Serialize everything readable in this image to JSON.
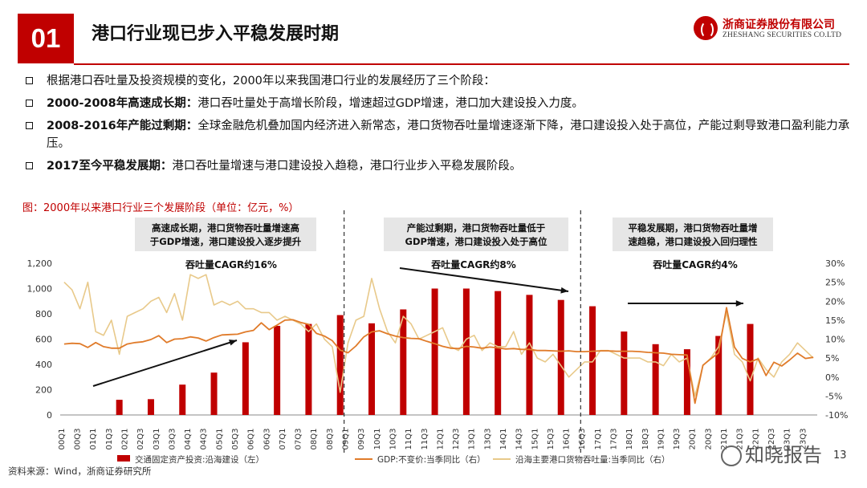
{
  "header": {
    "section_number": "01",
    "title": "港口行业现已步入平稳发展时期",
    "logo_cn": "浙商证券股份有限公司",
    "logo_en": "ZHESHANG SECURITIES CO.LTD",
    "accent_color": "#c00000"
  },
  "bullets": [
    {
      "bold": "",
      "text": "根据港口吞吐量及投资规模的变化，2000年以来我国港口行业的发展经历了三个阶段："
    },
    {
      "bold": "2000-2008年高速成长期：",
      "text": "港口吞吐量处于高增长阶段，增速超过GDP增速，港口加大建设投入力度。"
    },
    {
      "bold": "2008-2016年产能过剩期：",
      "text": "全球金融危机叠加国内经济进入新常态，港口货物吞吐量增速逐渐下降，港口建设投入处于高位，产能过剩导致港口盈利能力承压。"
    },
    {
      "bold": "2017至今平稳发展期：",
      "text": "港口吞吐量增速与港口建设投入趋稳，港口行业步入平稳发展阶段。"
    }
  ],
  "chart_caption": "图：2000年以来港口行业三个发展阶段（单位：亿元，%）",
  "chart_data": {
    "type": "bar+line",
    "categories": [
      "00Q1",
      "00Q2",
      "00Q3",
      "00Q4",
      "01Q1",
      "01Q2",
      "01Q3",
      "01Q4",
      "02Q1",
      "02Q2",
      "02Q3",
      "02Q4",
      "03Q1",
      "03Q2",
      "03Q3",
      "03Q4",
      "04Q1",
      "04Q2",
      "04Q3",
      "04Q4",
      "05Q1",
      "05Q2",
      "05Q3",
      "05Q4",
      "06Q1",
      "06Q2",
      "06Q3",
      "06Q4",
      "07Q1",
      "07Q2",
      "07Q3",
      "07Q4",
      "08Q1",
      "08Q2",
      "08Q3",
      "08Q4",
      "09Q1",
      "09Q2",
      "09Q3",
      "09Q4",
      "10Q1",
      "10Q2",
      "10Q3",
      "10Q4",
      "11Q1",
      "11Q2",
      "11Q3",
      "11Q4",
      "12Q1",
      "12Q2",
      "12Q3",
      "12Q4",
      "13Q1",
      "13Q2",
      "13Q3",
      "13Q4",
      "14Q1",
      "14Q2",
      "14Q3",
      "14Q4",
      "15Q1",
      "15Q2",
      "15Q3",
      "15Q4",
      "16Q1",
      "16Q2",
      "16Q3",
      "16Q4",
      "17Q1",
      "17Q2",
      "17Q3",
      "17Q4",
      "18Q1",
      "18Q2",
      "18Q3",
      "18Q4",
      "19Q1",
      "19Q2",
      "19Q3",
      "19Q4",
      "20Q1",
      "20Q2",
      "20Q3",
      "20Q4",
      "21Q1",
      "21Q2",
      "21Q3",
      "21Q4",
      "22Q1",
      "22Q2",
      "22Q3",
      "22Q4",
      "23Q1",
      "23Q2",
      "23Q3",
      "23Q4"
    ],
    "x_tick_labels": [
      "00Q1",
      "00Q3",
      "01Q1",
      "01Q3",
      "02Q1",
      "02Q3",
      "03Q1",
      "03Q3",
      "04Q1",
      "04Q3",
      "05Q1",
      "05Q3",
      "06Q1",
      "06Q3",
      "07Q1",
      "07Q3",
      "08Q1",
      "08Q3",
      "09Q1",
      "09Q3",
      "10Q1",
      "10Q3",
      "11Q1",
      "11Q3",
      "12Q1",
      "12Q3",
      "13Q1",
      "13Q3",
      "14Q1",
      "14Q3",
      "15Q1",
      "15Q3",
      "16Q1",
      "16Q3",
      "17Q1",
      "17Q3",
      "18Q1",
      "18Q3",
      "19Q1",
      "19Q3",
      "20Q1",
      "20Q3",
      "21Q1",
      "21Q3",
      "22Q1",
      "22Q3",
      "23Q1",
      "23Q3"
    ],
    "bars": {
      "name": "交通固定资产投资:沿海建设（左）",
      "color": "#c00000",
      "points": [
        {
          "x": "01Q4",
          "value": 120
        },
        {
          "x": "02Q4",
          "value": 125
        },
        {
          "x": "03Q4",
          "value": 240
        },
        {
          "x": "04Q4",
          "value": 335
        },
        {
          "x": "05Q4",
          "value": 575
        },
        {
          "x": "06Q4",
          "value": 705
        },
        {
          "x": "07Q4",
          "value": 720
        },
        {
          "x": "08Q4",
          "value": 790
        },
        {
          "x": "09Q4",
          "value": 725
        },
        {
          "x": "10Q4",
          "value": 835
        },
        {
          "x": "11Q4",
          "value": 1000
        },
        {
          "x": "12Q4",
          "value": 1000
        },
        {
          "x": "13Q4",
          "value": 980
        },
        {
          "x": "14Q4",
          "value": 950
        },
        {
          "x": "15Q4",
          "value": 910
        },
        {
          "x": "16Q4",
          "value": 860
        },
        {
          "x": "17Q4",
          "value": 660
        },
        {
          "x": "18Q4",
          "value": 560
        },
        {
          "x": "19Q4",
          "value": 520
        },
        {
          "x": "20Q4",
          "value": 625
        },
        {
          "x": "21Q4",
          "value": 720
        }
      ]
    },
    "gdp": {
      "name": "GDP:不变价:当季同比（右）",
      "color": "#e07b2a",
      "values": [
        8.7,
        8.9,
        8.8,
        7.8,
        9.1,
        8.0,
        7.6,
        7.6,
        8.7,
        9.1,
        9.3,
        9.9,
        10.9,
        9.1,
        10.0,
        10.1,
        10.6,
        10.3,
        9.5,
        10.4,
        11.1,
        11.2,
        11.3,
        11.9,
        12.3,
        14.3,
        12.5,
        13.7,
        15.0,
        15.1,
        14.4,
        13.9,
        11.5,
        10.8,
        9.6,
        7.1,
        6.4,
        8.2,
        10.6,
        11.9,
        12.2,
        11.4,
        10.8,
        10.4,
        10.2,
        10.1,
        9.4,
        8.8,
        8.1,
        7.6,
        7.5,
        8.1,
        7.9,
        7.6,
        7.9,
        7.7,
        7.4,
        7.5,
        7.3,
        7.3,
        7.0,
        7.0,
        6.9,
        6.8,
        6.9,
        6.7,
        6.7,
        6.8,
        6.9,
        6.9,
        6.8,
        6.8,
        6.8,
        6.7,
        6.5,
        6.4,
        6.3,
        6.0,
        5.9,
        5.8,
        -6.9,
        3.1,
        4.8,
        6.4,
        18.3,
        7.9,
        4.9,
        4.0,
        4.8,
        0.4,
        3.9,
        2.9,
        4.5,
        6.3,
        4.9,
        5.2
      ],
      "note": "right axis, %"
    },
    "throughput": {
      "name": "沿海主要港口货物吞吐量:当季同比（右）",
      "color": "#e8c98a",
      "values": [
        25,
        23,
        18,
        25,
        12,
        11,
        15,
        6,
        16,
        17,
        18,
        20,
        21,
        17,
        22,
        15,
        27,
        26,
        27,
        19,
        20,
        19,
        20,
        18,
        18,
        17,
        17,
        15,
        16,
        15,
        14,
        12,
        14,
        10,
        8,
        -4,
        9,
        15,
        16,
        26,
        18,
        12,
        9,
        16,
        14,
        10,
        11,
        12,
        13,
        8,
        7,
        10,
        11,
        7,
        9,
        8,
        8,
        12,
        6,
        9,
        5,
        4,
        6,
        3,
        0,
        2,
        4,
        4,
        7,
        7,
        6,
        5,
        5,
        5,
        4,
        4,
        3,
        6,
        4,
        5,
        -5,
        3,
        5,
        8,
        17,
        6,
        4,
        -1,
        5,
        2,
        0,
        4,
        6,
        9,
        7,
        5
      ],
      "note": "right axis, %"
    },
    "y_left": {
      "min": 0,
      "max": 1200,
      "ticks": [
        "0",
        "200",
        "400",
        "600",
        "800",
        "1,000",
        "1,200"
      ]
    },
    "y_right": {
      "min": -10,
      "max": 30,
      "ticks": [
        "-10%",
        "-5%",
        "0%",
        "5%",
        "10%",
        "15%",
        "20%",
        "25%",
        "30%"
      ]
    },
    "phase_dividers_after": [
      "08Q4",
      "16Q2"
    ],
    "phases": [
      {
        "text_line1": "高速成长期，港口货物吞吐量增速高",
        "text_line2": "于GDP增速，港口建设投入逐步提升",
        "cagr": "吞吐量CAGR约16%"
      },
      {
        "text_line1": "产能过剩期，港口货物吞吐量低于",
        "text_line2": "GDP增速，港口建设投入处于高位",
        "cagr": "吞吐量CAGR约8%"
      },
      {
        "text_line1": "平稳发展期，港口货物吞吐量增",
        "text_line2": "速趋稳，港口建设投入回归理性",
        "cagr": "吞吐量CAGR约4%"
      }
    ],
    "grid": false,
    "legend_position": "bottom"
  },
  "footer": {
    "source": "资料来源：Wind，浙商证券研究所",
    "page_number": "13",
    "watermark": "知晓报告"
  }
}
